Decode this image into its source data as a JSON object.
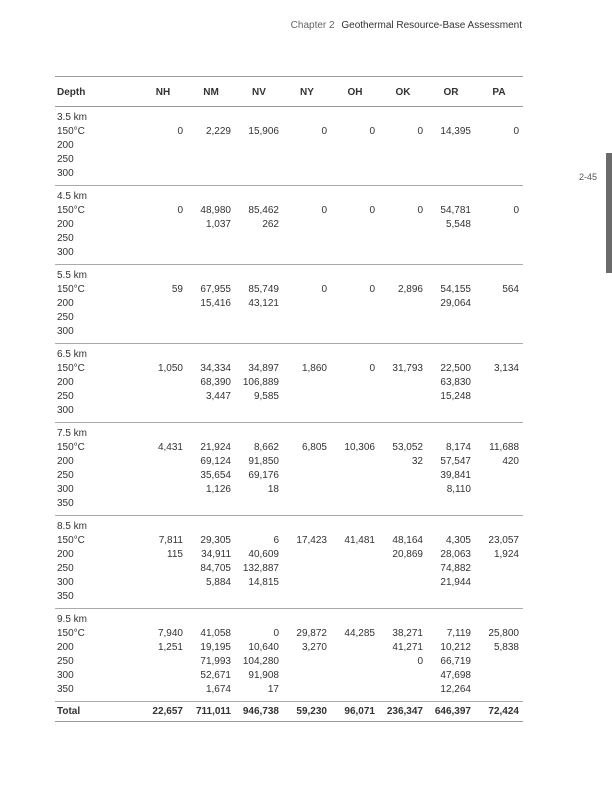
{
  "header": {
    "chapter": "Chapter 2",
    "title": "Geothermal Resource-Base Assessment"
  },
  "page_number": "2-45",
  "table": {
    "depth_header": "Depth",
    "state_headers": [
      "NH",
      "NM",
      "NV",
      "NY",
      "OH",
      "OK",
      "OR",
      "PA"
    ],
    "temp_labels": {
      "group_a": [
        "150°C",
        "200",
        "250",
        "300"
      ],
      "group_b": [
        "150°C",
        "200",
        "250",
        "300",
        "350"
      ]
    },
    "groups": [
      {
        "depth": "3.5 km",
        "temps_key": "group_a",
        "values": {
          "NH": [
            "0"
          ],
          "NM": [
            "2,229"
          ],
          "NV": [
            "15,906"
          ],
          "NY": [
            "0"
          ],
          "OH": [
            "0"
          ],
          "OK": [
            "0"
          ],
          "OR": [
            "14,395"
          ],
          "PA": [
            "0"
          ]
        }
      },
      {
        "depth": "4.5 km",
        "temps_key": "group_a",
        "values": {
          "NH": [
            "0"
          ],
          "NM": [
            "48,980",
            "1,037"
          ],
          "NV": [
            "85,462",
            "262"
          ],
          "NY": [
            "0"
          ],
          "OH": [
            "0"
          ],
          "OK": [
            "0"
          ],
          "OR": [
            "54,781",
            "5,548"
          ],
          "PA": [
            "0"
          ]
        }
      },
      {
        "depth": "5.5 km",
        "temps_key": "group_a",
        "values": {
          "NH": [
            "59"
          ],
          "NM": [
            "67,955",
            "15,416"
          ],
          "NV": [
            "85,749",
            "43,121"
          ],
          "NY": [
            "0"
          ],
          "OH": [
            "0"
          ],
          "OK": [
            "2,896"
          ],
          "OR": [
            "54,155",
            "29,064"
          ],
          "PA": [
            "564"
          ]
        }
      },
      {
        "depth": "6.5 km",
        "temps_key": "group_a",
        "values": {
          "NH": [
            "1,050"
          ],
          "NM": [
            "34,334",
            "68,390",
            "3,447"
          ],
          "NV": [
            "34,897",
            "106,889",
            "9,585"
          ],
          "NY": [
            "1,860"
          ],
          "OH": [
            "0"
          ],
          "OK": [
            "31,793"
          ],
          "OR": [
            "22,500",
            "63,830",
            "15,248"
          ],
          "PA": [
            "3,134"
          ]
        }
      },
      {
        "depth": "7.5 km",
        "temps_key": "group_b",
        "values": {
          "NH": [
            "4,431"
          ],
          "NM": [
            "21,924",
            "69,124",
            "35,654",
            "1,126"
          ],
          "NV": [
            "8,662",
            "91,850",
            "69,176",
            "18"
          ],
          "NY": [
            "6,805"
          ],
          "OH": [
            "10,306"
          ],
          "OK": [
            "53,052",
            "32"
          ],
          "OR": [
            "8,174",
            "57,547",
            "39,841",
            "8,110"
          ],
          "PA": [
            "11,688",
            "420"
          ]
        }
      },
      {
        "depth": "8.5 km",
        "temps_key": "group_b",
        "values": {
          "NH": [
            "7,811",
            "115"
          ],
          "NM": [
            "29,305",
            "34,911",
            "84,705",
            "5,884"
          ],
          "NV": [
            "6",
            "40,609",
            "132,887",
            "14,815"
          ],
          "NY": [
            "17,423"
          ],
          "OH": [
            "41,481"
          ],
          "OK": [
            "48,164",
            "20,869"
          ],
          "OR": [
            "4,305",
            "28,063",
            "74,882",
            "21,944"
          ],
          "PA": [
            "23,057",
            "1,924"
          ]
        }
      },
      {
        "depth": "9.5 km",
        "temps_key": "group_b",
        "values": {
          "NH": [
            "7,940",
            "1,251"
          ],
          "NM": [
            "41,058",
            "19,195",
            "71,993",
            "52,671",
            "1,674"
          ],
          "NV": [
            "0",
            "10,640",
            "104,280",
            "91,908",
            "17"
          ],
          "NY": [
            "29,872",
            "3,270"
          ],
          "OH": [
            "44,285"
          ],
          "OK": [
            "38,271",
            "41,271",
            "0"
          ],
          "OR": [
            "7,119",
            "10,212",
            "66,719",
            "47,698",
            "12,264"
          ],
          "PA": [
            "25,800",
            "5,838"
          ]
        }
      }
    ],
    "total": {
      "label": "Total",
      "values": {
        "NH": "22,657",
        "NM": "711,011",
        "NV": "946,738",
        "NY": "59,230",
        "OH": "96,071",
        "OK": "236,347",
        "OR": "646,397",
        "PA": "72,424"
      }
    }
  }
}
